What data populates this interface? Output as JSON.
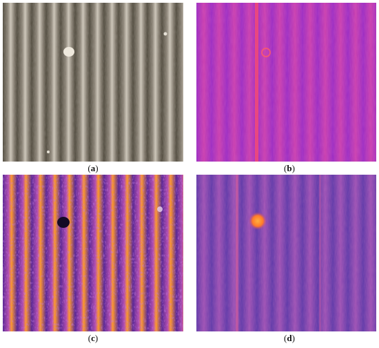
{
  "figure": {
    "panels": [
      {
        "id": "a",
        "label": "a",
        "content": "grayscale-corrugated-surface-photo",
        "palette": {
          "base": "#8b8376",
          "ridge_light": "#cfc8bb",
          "groove_dark": "#4c4639"
        }
      },
      {
        "id": "b",
        "label": "b",
        "content": "thermal-image-magenta",
        "palette": {
          "base": "#b02fc4",
          "stripe": "#d94a9a",
          "hot_line": "#ff5a5a"
        }
      },
      {
        "id": "c",
        "label": "c",
        "content": "thermal-image-high-contrast",
        "palette": {
          "base": "#9c3bc4",
          "hot": "#ff9a2a",
          "cold": "#3c1e6e"
        }
      },
      {
        "id": "d",
        "label": "d",
        "content": "thermal-image-purple",
        "palette": {
          "base": "#6a3fb8",
          "stripe": "#b65aa4",
          "hot_spot": "#ff8a2a"
        }
      }
    ]
  }
}
